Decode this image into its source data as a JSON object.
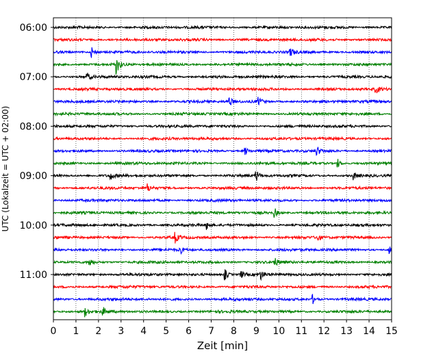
{
  "chart_data": {
    "type": "line",
    "subtype": "helicorder",
    "title": "",
    "xlabel": "Zeit  [min]",
    "ylabel": "UTC (Lokalzeit = UTC + 02:00)",
    "xlim": [
      0,
      15
    ],
    "x_ticks": [
      "0",
      "1",
      "2",
      "3",
      "4",
      "5",
      "6",
      "7",
      "8",
      "9",
      "10",
      "11",
      "12",
      "13",
      "14",
      "15"
    ],
    "y_tick_labels": [
      "06:00",
      "07:00",
      "08:00",
      "09:00",
      "10:00",
      "11:00"
    ],
    "x_grid": "dotted vertical lines at each minute",
    "trace_minutes": 15,
    "trace_start_times": [
      "06:00",
      "06:15",
      "06:30",
      "06:45",
      "07:00",
      "07:15",
      "07:30",
      "07:45",
      "08:00",
      "08:15",
      "08:30",
      "08:45",
      "09:00",
      "09:15",
      "09:30",
      "09:45",
      "10:00",
      "10:15",
      "10:30",
      "10:45",
      "11:00",
      "11:15",
      "11:30",
      "11:45"
    ],
    "color_cycle": [
      "#000000",
      "#ff0000",
      "#0000ff",
      "#008000"
    ],
    "events": [
      {
        "trace": "06:30",
        "minute": 1.7,
        "amplitude": 1.8
      },
      {
        "trace": "06:30",
        "minute": 10.5,
        "amplitude": 1.4
      },
      {
        "trace": "06:45",
        "minute": 2.8,
        "amplitude": 3.0
      },
      {
        "trace": "07:00",
        "minute": 1.5,
        "amplitude": 1.2
      },
      {
        "trace": "07:15",
        "minute": 14.3,
        "amplitude": 1.3
      },
      {
        "trace": "07:30",
        "minute": 7.8,
        "amplitude": 1.5
      },
      {
        "trace": "07:30",
        "minute": 9.1,
        "amplitude": 1.4
      },
      {
        "trace": "08:30",
        "minute": 8.5,
        "amplitude": 1.2
      },
      {
        "trace": "08:30",
        "minute": 11.7,
        "amplitude": 1.3
      },
      {
        "trace": "08:45",
        "minute": 12.6,
        "amplitude": 1.5
      },
      {
        "trace": "09:00",
        "minute": 2.5,
        "amplitude": 1.6
      },
      {
        "trace": "09:00",
        "minute": 9.0,
        "amplitude": 1.6
      },
      {
        "trace": "09:00",
        "minute": 13.3,
        "amplitude": 1.3
      },
      {
        "trace": "09:15",
        "minute": 4.2,
        "amplitude": 1.2
      },
      {
        "trace": "09:45",
        "minute": 9.8,
        "amplitude": 1.6
      },
      {
        "trace": "10:00",
        "minute": 6.8,
        "amplitude": 1.3
      },
      {
        "trace": "10:15",
        "minute": 5.4,
        "amplitude": 1.6
      },
      {
        "trace": "10:15",
        "minute": 11.7,
        "amplitude": 1.3
      },
      {
        "trace": "10:30",
        "minute": 5.6,
        "amplitude": 1.5
      },
      {
        "trace": "10:30",
        "minute": 14.9,
        "amplitude": 1.4
      },
      {
        "trace": "10:45",
        "minute": 1.6,
        "amplitude": 1.4
      },
      {
        "trace": "10:45",
        "minute": 9.8,
        "amplitude": 1.5
      },
      {
        "trace": "11:00",
        "minute": 7.6,
        "amplitude": 2.0
      },
      {
        "trace": "11:00",
        "minute": 8.3,
        "amplitude": 1.5
      },
      {
        "trace": "11:00",
        "minute": 9.2,
        "amplitude": 1.4
      },
      {
        "trace": "11:30",
        "minute": 11.5,
        "amplitude": 1.4
      },
      {
        "trace": "11:45",
        "minute": 1.4,
        "amplitude": 1.5
      },
      {
        "trace": "11:45",
        "minute": 2.2,
        "amplitude": 1.3
      }
    ]
  }
}
